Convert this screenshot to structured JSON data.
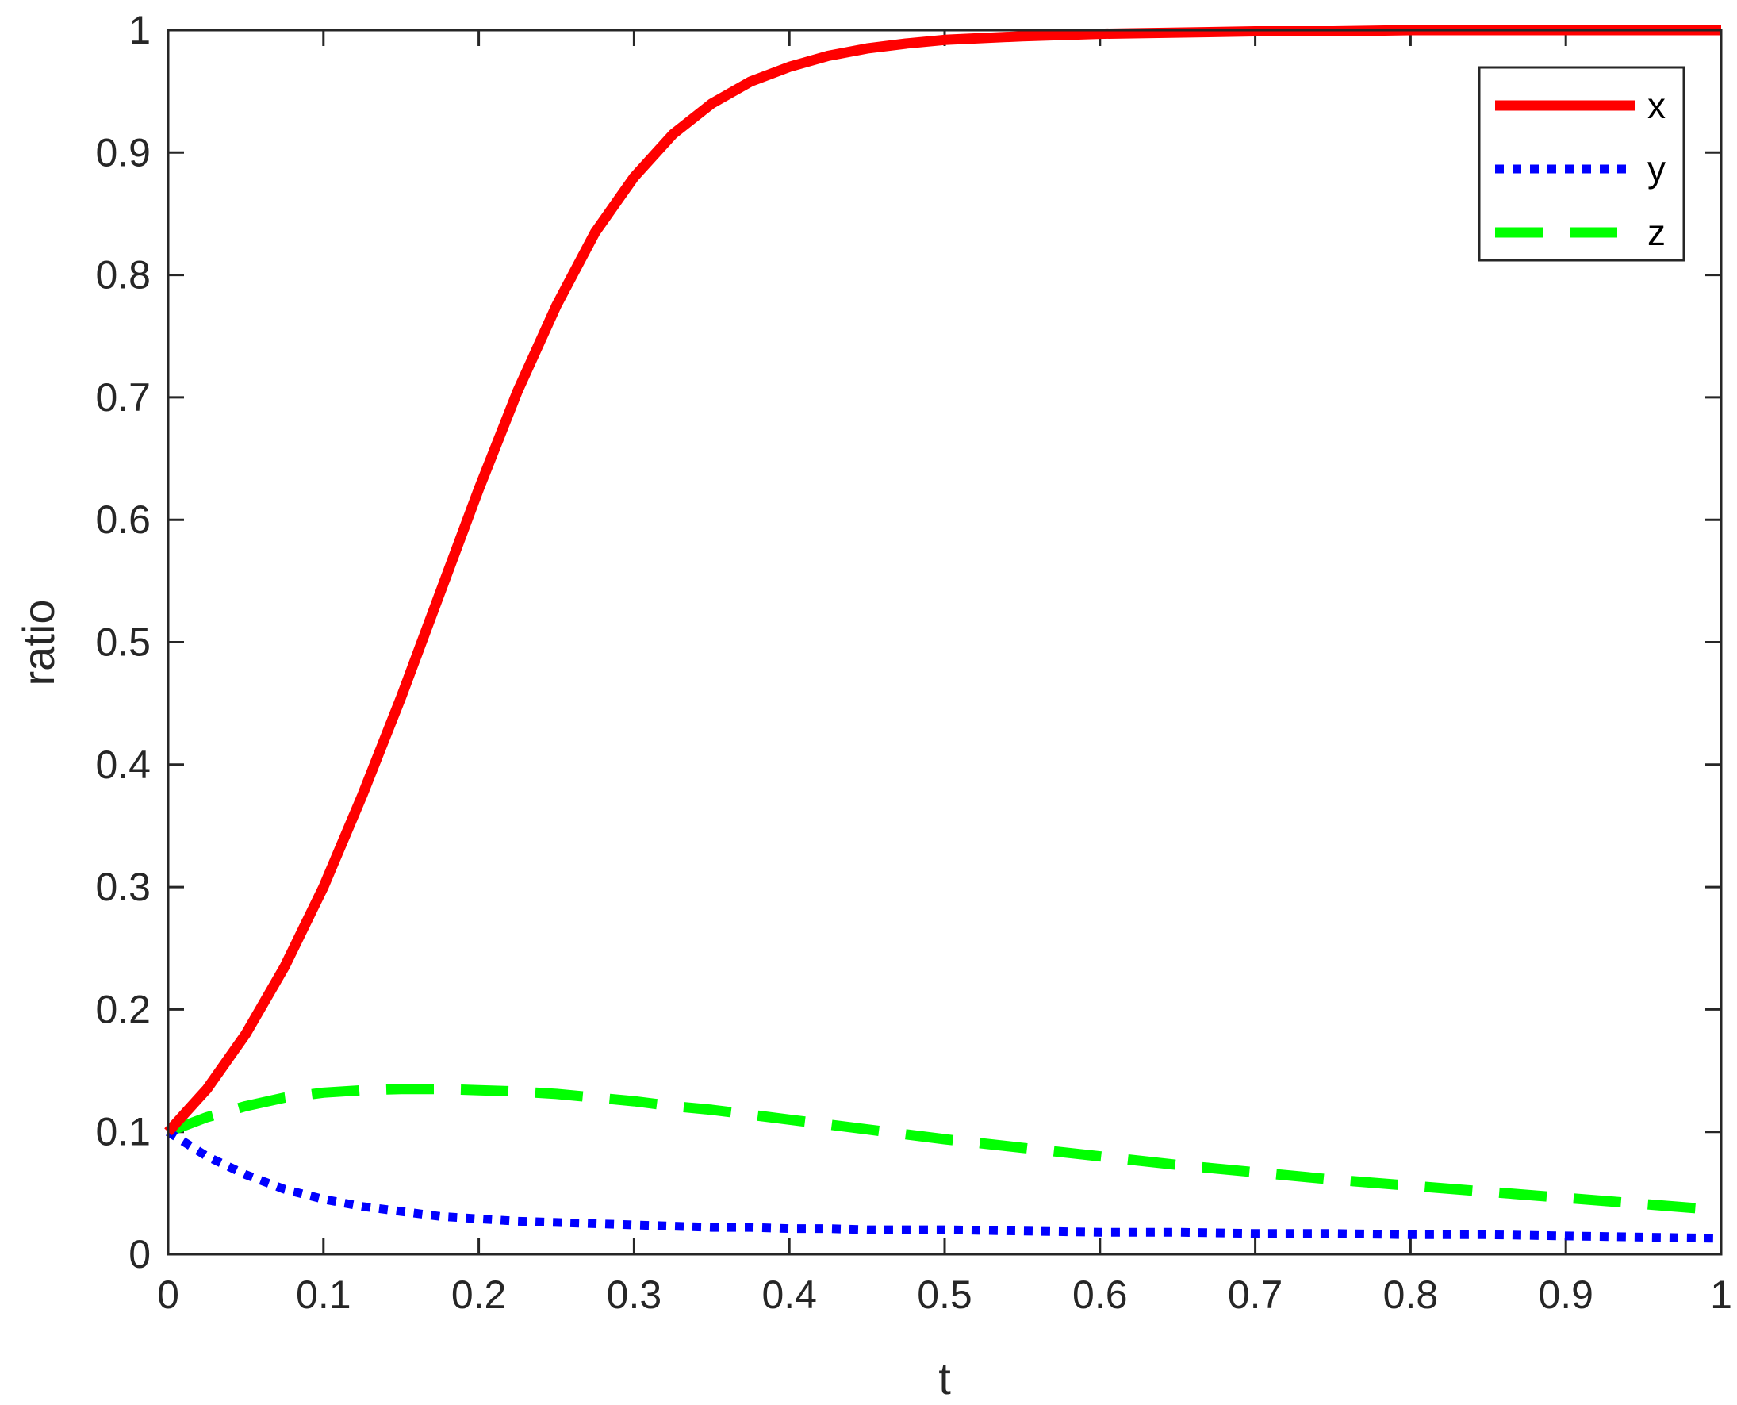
{
  "chart_data": {
    "type": "line",
    "title": "",
    "xlabel": "t",
    "ylabel": "ratio",
    "xlim": [
      0,
      1
    ],
    "ylim": [
      0,
      1
    ],
    "xticks": [
      "0",
      "0.1",
      "0.2",
      "0.3",
      "0.4",
      "0.5",
      "0.6",
      "0.7",
      "0.8",
      "0.9",
      "1"
    ],
    "yticks": [
      "0",
      "0.1",
      "0.2",
      "0.3",
      "0.4",
      "0.5",
      "0.6",
      "0.7",
      "0.8",
      "0.9",
      "1"
    ],
    "grid": false,
    "legend_position": "top-right",
    "x": [
      0,
      0.025,
      0.05,
      0.075,
      0.1,
      0.125,
      0.15,
      0.175,
      0.2,
      0.225,
      0.25,
      0.275,
      0.3,
      0.325,
      0.35,
      0.375,
      0.4,
      0.425,
      0.45,
      0.475,
      0.5,
      0.55,
      0.6,
      0.65,
      0.7,
      0.75,
      0.8,
      0.85,
      0.9,
      0.95,
      1.0
    ],
    "series": [
      {
        "name": "x",
        "color": "#ff0000",
        "style": "solid",
        "values": [
          0.1,
          0.135,
          0.18,
          0.235,
          0.3,
          0.375,
          0.455,
          0.54,
          0.625,
          0.705,
          0.775,
          0.835,
          0.88,
          0.915,
          0.94,
          0.958,
          0.97,
          0.979,
          0.985,
          0.989,
          0.992,
          0.995,
          0.997,
          0.998,
          0.999,
          0.999,
          1.0,
          1.0,
          1.0,
          1.0,
          1.0
        ]
      },
      {
        "name": "y",
        "color": "#0000ff",
        "style": "dotted",
        "values": [
          0.1,
          0.08,
          0.065,
          0.053,
          0.045,
          0.039,
          0.035,
          0.031,
          0.029,
          0.027,
          0.026,
          0.025,
          0.024,
          0.023,
          0.022,
          0.022,
          0.021,
          0.021,
          0.02,
          0.02,
          0.02,
          0.019,
          0.018,
          0.018,
          0.017,
          0.017,
          0.016,
          0.016,
          0.015,
          0.014,
          0.013
        ]
      },
      {
        "name": "z",
        "color": "#00ff00",
        "style": "dashed",
        "values": [
          0.1,
          0.112,
          0.121,
          0.128,
          0.132,
          0.134,
          0.135,
          0.135,
          0.134,
          0.133,
          0.131,
          0.128,
          0.125,
          0.121,
          0.118,
          0.114,
          0.11,
          0.106,
          0.102,
          0.098,
          0.094,
          0.087,
          0.08,
          0.073,
          0.067,
          0.061,
          0.056,
          0.051,
          0.046,
          0.041,
          0.036
        ]
      }
    ]
  }
}
